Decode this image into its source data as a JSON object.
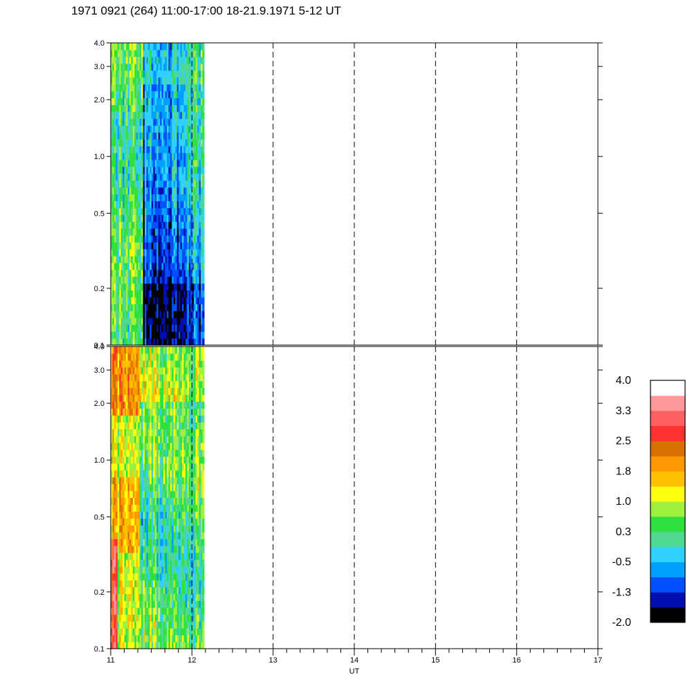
{
  "title": "1971 0921 (264) 11:00-17:00 18-21.9.1971  5-12 UT",
  "chart_data": {
    "type": "heatmap",
    "title": "1971 0921 (264) 11:00-17:00 18-21.9.1971  5-12 UT",
    "xlabel": "UT",
    "xlim": [
      11,
      17
    ],
    "x_ticks": [
      11,
      12,
      13,
      14,
      15,
      16,
      17
    ],
    "x_tick_labels": [
      "11",
      "12",
      "13",
      "14",
      "15",
      "16",
      "17"
    ],
    "dashed_verticals": [
      12,
      13,
      14,
      15,
      16
    ],
    "data_extent_x": [
      11,
      12.15
    ],
    "y_scale": "log",
    "panels": [
      {
        "name": "top",
        "ylim": [
          0.1,
          4.0
        ],
        "y_ticks": [
          0.1,
          0.2,
          0.5,
          1.0,
          2.0,
          3.0,
          4.0
        ],
        "y_tick_labels": [
          "0.1",
          "0.2",
          "0.5",
          "1.0",
          "2.0",
          "3.0",
          "4.0"
        ]
      },
      {
        "name": "bottom",
        "ylim": [
          0.1,
          4.0
        ],
        "y_ticks": [
          0.1,
          0.2,
          0.5,
          1.0,
          2.0,
          3.0,
          4.0
        ],
        "y_tick_labels": [
          "0.1",
          "0.2",
          "0.5",
          "1.0",
          "2.0",
          "3.0",
          "4.0"
        ]
      }
    ],
    "colorbar": {
      "range": [
        -2.0,
        4.0
      ],
      "labels": [
        "4.0",
        "3.3",
        "2.5",
        "1.8",
        "1.0",
        "0.3",
        "-0.5",
        "-1.3",
        "-2.0"
      ],
      "colors": [
        "#000000",
        "#0010b0",
        "#0050ff",
        "#00a0ff",
        "#30d0ff",
        "#50d890",
        "#30e040",
        "#a0f040",
        "#ffff10",
        "#ffc000",
        "#ff9800",
        "#d87000",
        "#ff3030",
        "#ff6060",
        "#ff9898",
        "#ffffff"
      ]
    }
  }
}
